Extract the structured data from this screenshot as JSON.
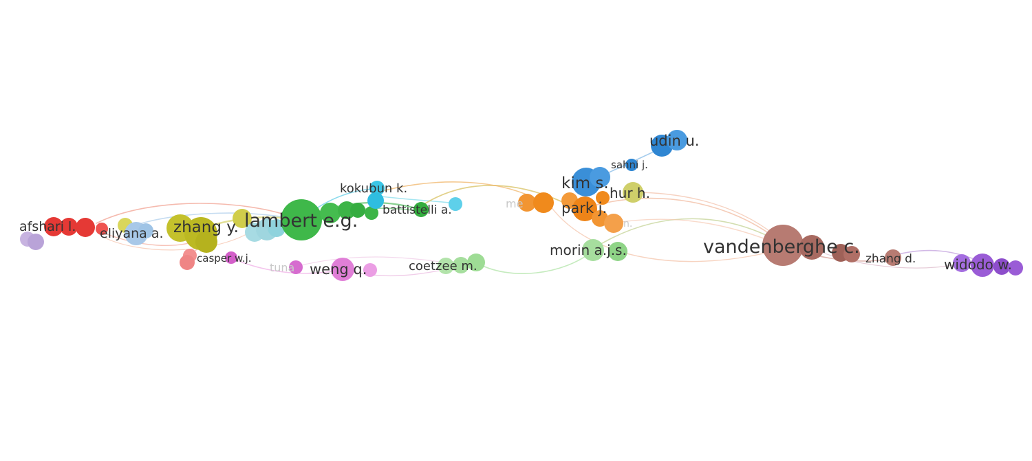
{
  "clusters": [
    {
      "id": "red",
      "color": "#e53935"
    },
    {
      "id": "lavender",
      "color": "#c7b3e0"
    },
    {
      "id": "olive",
      "color": "#c4c12c"
    },
    {
      "id": "lightblue",
      "color": "#9fc4e6"
    },
    {
      "id": "cyan",
      "color": "#8fd3dd"
    },
    {
      "id": "green",
      "color": "#3fb84a"
    },
    {
      "id": "aqua",
      "color": "#3cc6e6"
    },
    {
      "id": "pink",
      "color": "#f08a8a"
    },
    {
      "id": "magenta",
      "color": "#dc6fd2"
    },
    {
      "id": "lightgreen",
      "color": "#9edc95"
    },
    {
      "id": "orange",
      "color": "#f08a1c"
    },
    {
      "id": "blue",
      "color": "#3a8fd8"
    },
    {
      "id": "khaki",
      "color": "#cfcf6a"
    },
    {
      "id": "brown",
      "color": "#b77b72"
    },
    {
      "id": "purple",
      "color": "#9a5cd6"
    }
  ],
  "labels": [
    {
      "id": "afshari",
      "text": "afshari l.",
      "cluster": "red"
    },
    {
      "id": "eliyana",
      "text": "eliyana a.",
      "cluster": "lightblue"
    },
    {
      "id": "zhangy",
      "text": "zhang y.",
      "cluster": "olive"
    },
    {
      "id": "lambert",
      "text": "lambert e.g.",
      "cluster": "green"
    },
    {
      "id": "kokubun",
      "text": "kokubun k.",
      "cluster": "aqua"
    },
    {
      "id": "battistelli",
      "text": "battistelli a.",
      "cluster": "green"
    },
    {
      "id": "casper",
      "text": "casper w.j.",
      "cluster": "magenta"
    },
    {
      "id": "tuna",
      "text": "tuna",
      "cluster": "magenta"
    },
    {
      "id": "weng",
      "text": "weng q.",
      "cluster": "magenta"
    },
    {
      "id": "coetzee",
      "text": "coetzee m.",
      "cluster": "lightgreen"
    },
    {
      "id": "meyer",
      "text": "me",
      "cluster": "orange"
    },
    {
      "id": "kims",
      "text": "kim s.",
      "cluster": "blue"
    },
    {
      "id": "sahni",
      "text": "sahni j.",
      "cluster": "blue"
    },
    {
      "id": "udin",
      "text": "udin u.",
      "cluster": "blue"
    },
    {
      "id": "hur",
      "text": "hur h.",
      "cluster": "khaki"
    },
    {
      "id": "parkj",
      "text": "park j.",
      "cluster": "orange"
    },
    {
      "id": "parkj2",
      "text": "n.",
      "cluster": "orange"
    },
    {
      "id": "morin",
      "text": "morin a.j.s.",
      "cluster": "lightgreen"
    },
    {
      "id": "vandenberghe",
      "text": "vandenberghe c.",
      "cluster": "brown"
    },
    {
      "id": "zhangd",
      "text": "zhang d.",
      "cluster": "brown"
    },
    {
      "id": "widodo",
      "text": "widodo w.",
      "cluster": "purple"
    }
  ]
}
